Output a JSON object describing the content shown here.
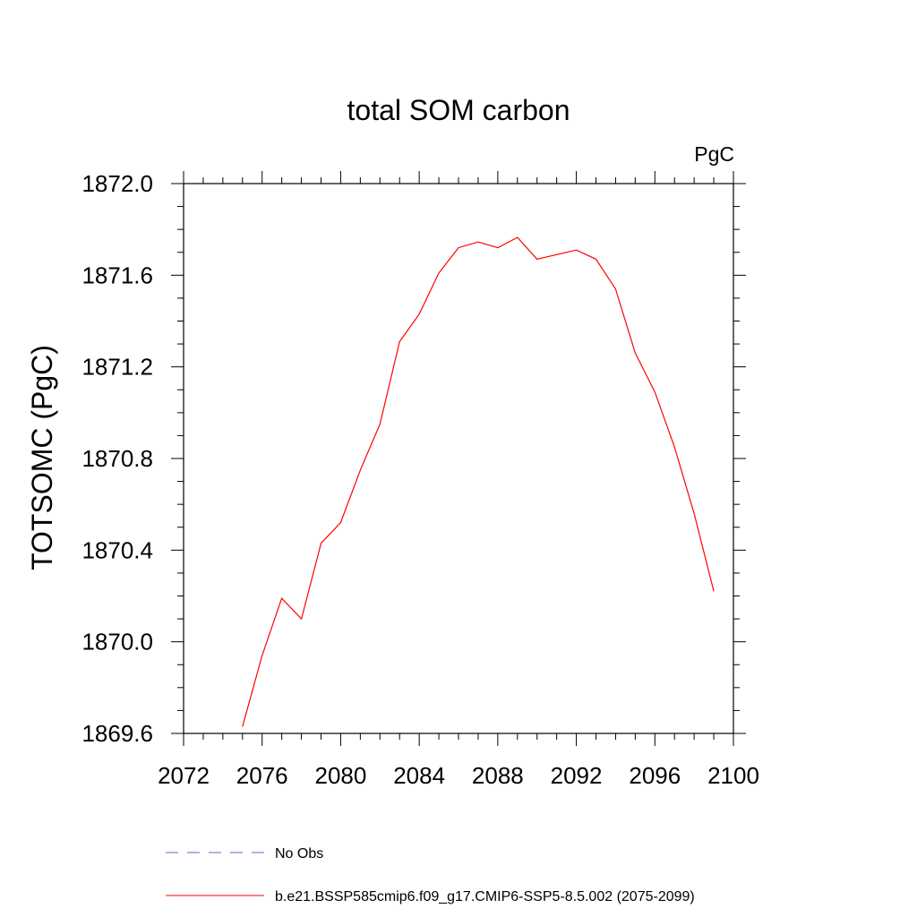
{
  "chart_data": {
    "type": "line",
    "title": "total SOM carbon",
    "units_label": "PgC",
    "ylabel": "TOTSOMC  (PgC)",
    "xlabel": "",
    "xlim": [
      2072,
      2100
    ],
    "ylim": [
      1869.6,
      1872.0
    ],
    "xticks": [
      2072,
      2076,
      2080,
      2084,
      2088,
      2092,
      2096,
      2100
    ],
    "yticks": [
      1869.6,
      1870.0,
      1870.4,
      1870.8,
      1871.2,
      1871.6,
      1872.0
    ],
    "xtick_labels": [
      "2072",
      "2076",
      "2080",
      "2084",
      "2088",
      "2092",
      "2096",
      "2100"
    ],
    "ytick_labels": [
      "1869.6",
      "1870.0",
      "1870.4",
      "1870.8",
      "1871.2",
      "1871.6",
      "1872.0"
    ],
    "grid": false,
    "legend_position": "bottom",
    "series": [
      {
        "name": "No Obs",
        "color": "#6b5fbf",
        "dash": "dashed",
        "x": [],
        "y": []
      },
      {
        "name": "b.e21.BSSP585cmip6.f09_g17.CMIP6-SSP5-8.5.002 (2075-2099)",
        "color": "#ff0000",
        "dash": "solid",
        "x": [
          2075,
          2076,
          2077,
          2078,
          2079,
          2080,
          2081,
          2082,
          2083,
          2084,
          2085,
          2086,
          2087,
          2088,
          2089,
          2090,
          2091,
          2092,
          2093,
          2094,
          2095,
          2096,
          2097,
          2098,
          2099
        ],
        "y": [
          1869.63,
          1869.94,
          1870.19,
          1870.1,
          1870.43,
          1870.52,
          1870.75,
          1870.95,
          1871.31,
          1871.43,
          1871.61,
          1871.72,
          1871.745,
          1871.72,
          1871.765,
          1871.67,
          1871.69,
          1871.71,
          1871.67,
          1871.54,
          1871.26,
          1871.09,
          1870.85,
          1870.56,
          1870.22
        ]
      }
    ]
  }
}
